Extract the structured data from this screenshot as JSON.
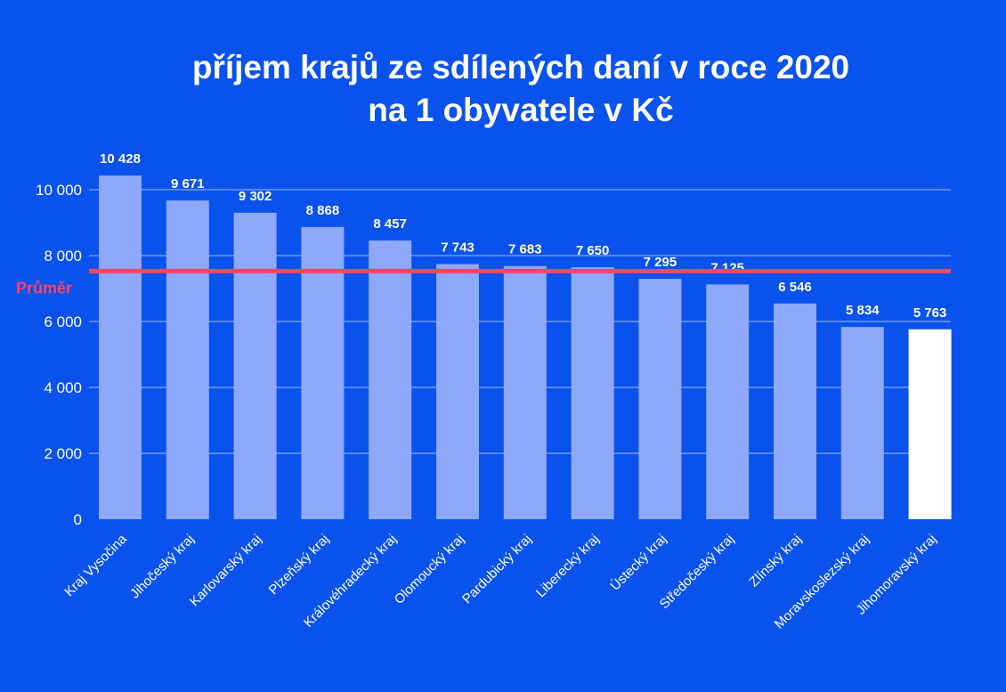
{
  "title_line1": "příjem krajů ze sdílených daní v roce 2020",
  "title_line2": "na 1 obyvatele v Kč",
  "colors": {
    "background": "#0a52ec",
    "bar": "#8ea9fb",
    "bar_highlight": "#ffffff",
    "average_line": "#f6456b",
    "grid": "#c9d6fc"
  },
  "chart_data": {
    "type": "bar",
    "title": "příjem krajů ze sdílených daní v roce 2020 na 1 obyvatele v Kč",
    "categories": [
      "Kraj Vysočina",
      "Jihočeský kraj",
      "Karlovarský kraj",
      "Plzeňský kraj",
      "Královéhradecký kraj",
      "Olomoucký kraj",
      "Pardubický kraj",
      "Liberecký kraj",
      "Ústecký kraj",
      "Středočeský kraj",
      "Zlínský kraj",
      "Moravskoslezský kraj",
      "Jihomoravský kraj"
    ],
    "values": [
      10428,
      9671,
      9302,
      8868,
      8457,
      7743,
      7683,
      7650,
      7295,
      7125,
      6546,
      5834,
      5763
    ],
    "value_labels": [
      "10 428",
      "9 671",
      "9 302",
      "8 868",
      "8 457",
      "7 743",
      "7 683",
      "7 650",
      "7 295",
      "7 125",
      "6 546",
      "5 834",
      "5 763"
    ],
    "highlight_index": 12,
    "ylim": [
      0,
      10000
    ],
    "yticks": [
      0,
      2000,
      4000,
      6000,
      8000,
      10000
    ],
    "ytick_labels": [
      "0",
      "2 000",
      "4 000",
      "6 000",
      "8 000",
      "10 000"
    ],
    "grid": true,
    "average": 7530,
    "average_label": "Průměr"
  }
}
